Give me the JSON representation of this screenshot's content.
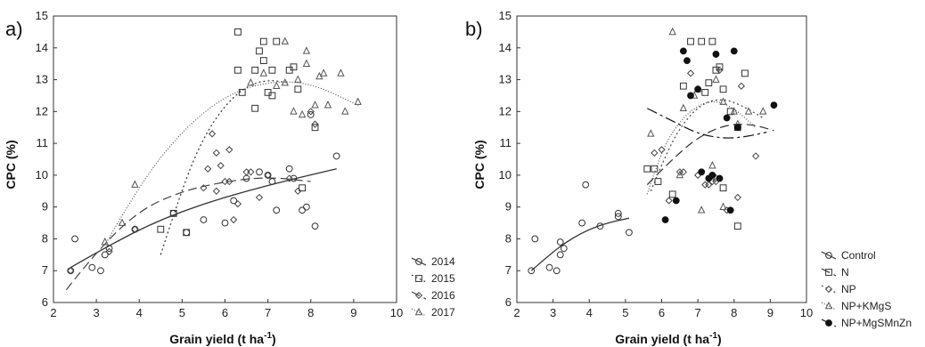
{
  "chart_data": [
    {
      "type": "scatter",
      "panel_label": "a)",
      "xlabel": "Grain yield (t ha",
      "xlabel_sup": "-1",
      "xlabel_close": ")",
      "ylabel": "CPC (%)",
      "xlim": [
        2,
        10
      ],
      "ylim": [
        6,
        15
      ],
      "x_ticks": [
        2,
        3,
        4,
        5,
        6,
        7,
        8,
        9,
        10
      ],
      "y_ticks": [
        6,
        7,
        8,
        9,
        10,
        11,
        12,
        13,
        14,
        15
      ],
      "grid": false,
      "legend_position": "bottom-right",
      "series": [
        {
          "name": "2014",
          "marker": "circle",
          "line_style": "solid",
          "color": "#333333",
          "points": [
            [
              2.4,
              7.0
            ],
            [
              2.5,
              8.0
            ],
            [
              2.9,
              7.1
            ],
            [
              3.1,
              7.0
            ],
            [
              3.2,
              7.5
            ],
            [
              3.3,
              7.7
            ],
            [
              3.9,
              8.3
            ],
            [
              4.8,
              8.8
            ],
            [
              5.1,
              8.2
            ],
            [
              5.5,
              8.6
            ],
            [
              6.0,
              8.5
            ],
            [
              6.2,
              9.2
            ],
            [
              6.5,
              9.9
            ],
            [
              6.8,
              10.1
            ],
            [
              7.0,
              10.0
            ],
            [
              7.1,
              9.8
            ],
            [
              7.2,
              8.9
            ],
            [
              7.5,
              10.2
            ],
            [
              7.6,
              9.9
            ],
            [
              7.8,
              8.9
            ],
            [
              7.9,
              9.0
            ],
            [
              8.0,
              11.9
            ],
            [
              8.1,
              8.4
            ],
            [
              8.6,
              10.6
            ]
          ],
          "fit": [
            [
              2.4,
              7.1
            ],
            [
              3.5,
              7.95
            ],
            [
              4.5,
              8.6
            ],
            [
              5.5,
              9.1
            ],
            [
              6.5,
              9.5
            ],
            [
              7.5,
              9.85
            ],
            [
              8.6,
              10.2
            ]
          ]
        },
        {
          "name": "2015",
          "marker": "square",
          "line_style": "dotted",
          "color": "#333333",
          "points": [
            [
              4.5,
              8.3
            ],
            [
              4.8,
              8.8
            ],
            [
              5.1,
              8.2
            ],
            [
              6.3,
              14.5
            ],
            [
              6.3,
              13.3
            ],
            [
              6.4,
              12.6
            ],
            [
              6.7,
              12.1
            ],
            [
              6.7,
              13.3
            ],
            [
              6.8,
              13.9
            ],
            [
              6.9,
              14.2
            ],
            [
              6.9,
              13.6
            ],
            [
              7.0,
              12.6
            ],
            [
              7.1,
              12.5
            ],
            [
              7.1,
              13.3
            ],
            [
              7.2,
              14.2
            ],
            [
              7.5,
              13.3
            ],
            [
              7.6,
              13.4
            ],
            [
              7.7,
              12.7
            ],
            [
              7.8,
              9.6
            ],
            [
              8.1,
              11.5
            ]
          ],
          "fit": [
            [
              4.5,
              7.5
            ],
            [
              5.0,
              9.6
            ],
            [
              5.5,
              11.2
            ],
            [
              6.0,
              12.2
            ],
            [
              6.5,
              12.8
            ],
            [
              7.0,
              13.0
            ],
            [
              7.5,
              12.9
            ]
          ]
        },
        {
          "name": "2016",
          "marker": "diamond",
          "line_style": "dashed",
          "color": "#444444",
          "points": [
            [
              2.4,
              7.0
            ],
            [
              3.3,
              7.6
            ],
            [
              3.9,
              8.3
            ],
            [
              5.5,
              9.6
            ],
            [
              5.6,
              10.2
            ],
            [
              5.7,
              11.3
            ],
            [
              5.8,
              10.7
            ],
            [
              5.8,
              9.5
            ],
            [
              5.9,
              10.3
            ],
            [
              6.0,
              9.8
            ],
            [
              6.1,
              10.8
            ],
            [
              6.1,
              9.8
            ],
            [
              6.2,
              8.6
            ],
            [
              6.3,
              9.1
            ],
            [
              6.5,
              10.1
            ],
            [
              6.6,
              10.1
            ],
            [
              6.8,
              9.3
            ],
            [
              7.0,
              10.0
            ],
            [
              7.5,
              9.9
            ],
            [
              7.7,
              9.5
            ],
            [
              8.0,
              12.0
            ],
            [
              8.1,
              11.6
            ]
          ],
          "fit": [
            [
              2.3,
              6.4
            ],
            [
              3.0,
              7.6
            ],
            [
              4.0,
              8.9
            ],
            [
              5.0,
              9.5
            ],
            [
              6.0,
              9.8
            ],
            [
              7.0,
              9.95
            ],
            [
              8.0,
              9.8
            ]
          ]
        },
        {
          "name": "2017",
          "marker": "triangle",
          "line_style": "dotted-fine",
          "color": "#555555",
          "points": [
            [
              3.2,
              7.9
            ],
            [
              3.6,
              8.5
            ],
            [
              3.9,
              9.7
            ],
            [
              6.6,
              12.9
            ],
            [
              6.9,
              13.2
            ],
            [
              7.2,
              12.8
            ],
            [
              7.4,
              14.2
            ],
            [
              7.4,
              12.9
            ],
            [
              7.6,
              12.0
            ],
            [
              7.7,
              13.0
            ],
            [
              7.8,
              11.9
            ],
            [
              7.9,
              13.9
            ],
            [
              7.9,
              13.5
            ],
            [
              8.1,
              12.2
            ],
            [
              8.2,
              13.1
            ],
            [
              8.3,
              13.2
            ],
            [
              8.4,
              12.2
            ],
            [
              8.7,
              13.2
            ],
            [
              8.8,
              12.0
            ],
            [
              9.1,
              12.3
            ]
          ],
          "fit": [
            [
              3.2,
              7.8
            ],
            [
              4.0,
              9.7
            ],
            [
              5.0,
              11.4
            ],
            [
              6.0,
              12.5
            ],
            [
              7.0,
              12.95
            ],
            [
              8.0,
              12.9
            ],
            [
              9.1,
              12.2
            ]
          ]
        }
      ]
    },
    {
      "type": "scatter",
      "panel_label": "b)",
      "xlabel": "Grain yield (t ha",
      "xlabel_sup": "-1",
      "xlabel_close": ")",
      "ylabel": "CPC (%)",
      "xlim": [
        2,
        10
      ],
      "ylim": [
        6,
        15
      ],
      "x_ticks": [
        2,
        3,
        4,
        5,
        6,
        7,
        8,
        9,
        10
      ],
      "y_ticks": [
        6,
        7,
        8,
        9,
        10,
        11,
        12,
        13,
        14,
        15
      ],
      "grid": false,
      "legend_position": "right",
      "series": [
        {
          "name": "Control",
          "marker": "circle",
          "line_style": "solid",
          "color": "#333333",
          "points": [
            [
              2.4,
              7.0
            ],
            [
              2.5,
              8.0
            ],
            [
              2.9,
              7.1
            ],
            [
              3.1,
              7.0
            ],
            [
              3.2,
              7.5
            ],
            [
              3.2,
              7.9
            ],
            [
              3.3,
              7.7
            ],
            [
              3.8,
              8.5
            ],
            [
              3.9,
              9.7
            ],
            [
              4.3,
              8.4
            ],
            [
              4.8,
              8.8
            ],
            [
              4.8,
              8.7
            ],
            [
              5.1,
              8.2
            ]
          ],
          "fit": [
            [
              2.4,
              7.0
            ],
            [
              3.0,
              7.6
            ],
            [
              3.5,
              8.0
            ],
            [
              4.0,
              8.3
            ],
            [
              4.5,
              8.5
            ],
            [
              5.1,
              8.65
            ]
          ]
        },
        {
          "name": "N",
          "marker": "square",
          "line_style": "dashed",
          "color": "#333333",
          "points": [
            [
              5.6,
              10.2
            ],
            [
              5.8,
              10.2
            ],
            [
              5.9,
              9.8
            ],
            [
              6.3,
              9.4
            ],
            [
              6.6,
              12.8
            ],
            [
              6.8,
              14.2
            ],
            [
              7.1,
              14.2
            ],
            [
              7.2,
              12.6
            ],
            [
              7.3,
              12.9
            ],
            [
              7.4,
              14.2
            ],
            [
              7.5,
              13.3
            ],
            [
              7.6,
              13.4
            ],
            [
              7.7,
              12.7
            ],
            [
              7.7,
              9.6
            ],
            [
              7.9,
              12.0
            ],
            [
              8.1,
              11.5
            ],
            [
              8.1,
              8.4
            ],
            [
              8.3,
              13.2
            ]
          ],
          "fit": [
            [
              5.6,
              9.7
            ],
            [
              6.2,
              10.4
            ],
            [
              7.0,
              11.2
            ],
            [
              7.8,
              11.6
            ],
            [
              8.5,
              11.6
            ],
            [
              9.1,
              11.4
            ]
          ]
        },
        {
          "name": "NP",
          "marker": "diamond",
          "line_style": "dotted",
          "color": "#444444",
          "points": [
            [
              5.8,
              10.7
            ],
            [
              6.0,
              10.8
            ],
            [
              6.2,
              9.2
            ],
            [
              6.5,
              10.1
            ],
            [
              6.6,
              10.1
            ],
            [
              6.8,
              13.2
            ],
            [
              7.0,
              10.0
            ],
            [
              7.2,
              9.7
            ],
            [
              7.3,
              9.7
            ],
            [
              7.4,
              9.8
            ],
            [
              7.5,
              9.8
            ],
            [
              7.6,
              13.3
            ],
            [
              7.8,
              8.9
            ],
            [
              8.1,
              9.3
            ],
            [
              8.2,
              12.8
            ],
            [
              8.6,
              10.6
            ]
          ],
          "fit": [
            [
              5.7,
              9.5
            ],
            [
              6.2,
              10.9
            ],
            [
              6.7,
              11.8
            ],
            [
              7.2,
              12.3
            ],
            [
              7.7,
              12.4
            ],
            [
              8.2,
              12.2
            ],
            [
              8.8,
              11.8
            ]
          ]
        },
        {
          "name": "NP+KMgS",
          "marker": "triangle",
          "line_style": "dotted-fine",
          "color": "#555555",
          "points": [
            [
              5.7,
              11.3
            ],
            [
              6.3,
              14.5
            ],
            [
              6.5,
              10.0
            ],
            [
              6.6,
              12.1
            ],
            [
              6.9,
              12.5
            ],
            [
              7.0,
              12.7
            ],
            [
              7.1,
              8.9
            ],
            [
              7.4,
              10.3
            ],
            [
              7.5,
              9.9
            ],
            [
              7.5,
              13.0
            ],
            [
              7.7,
              12.3
            ],
            [
              7.7,
              9.0
            ],
            [
              8.0,
              12.0
            ],
            [
              8.1,
              11.6
            ],
            [
              8.4,
              12.0
            ],
            [
              8.8,
              12.0
            ]
          ],
          "fit": [
            [
              5.6,
              9.4
            ],
            [
              6.0,
              10.8
            ],
            [
              6.5,
              11.7
            ],
            [
              7.0,
              12.2
            ],
            [
              7.5,
              12.35
            ],
            [
              8.0,
              12.1
            ],
            [
              8.6,
              11.5
            ]
          ]
        },
        {
          "name": "NP+MgSMnZn",
          "marker": "filled-circle",
          "line_style": "dash-dot",
          "color": "#111111",
          "points": [
            [
              6.1,
              8.6
            ],
            [
              6.4,
              9.2
            ],
            [
              6.6,
              13.9
            ],
            [
              6.7,
              13.6
            ],
            [
              6.8,
              12.5
            ],
            [
              7.0,
              12.7
            ],
            [
              7.1,
              10.1
            ],
            [
              7.3,
              9.9
            ],
            [
              7.4,
              10.0
            ],
            [
              7.5,
              13.8
            ],
            [
              7.6,
              9.9
            ],
            [
              7.8,
              11.8
            ],
            [
              7.9,
              8.9
            ],
            [
              8.0,
              13.9
            ],
            [
              8.1,
              11.5
            ],
            [
              9.1,
              12.2
            ]
          ],
          "fit": [
            [
              5.6,
              12.1
            ],
            [
              6.3,
              11.7
            ],
            [
              7.0,
              11.3
            ],
            [
              7.7,
              11.15
            ],
            [
              8.3,
              11.2
            ],
            [
              8.9,
              11.35
            ]
          ]
        }
      ]
    }
  ]
}
